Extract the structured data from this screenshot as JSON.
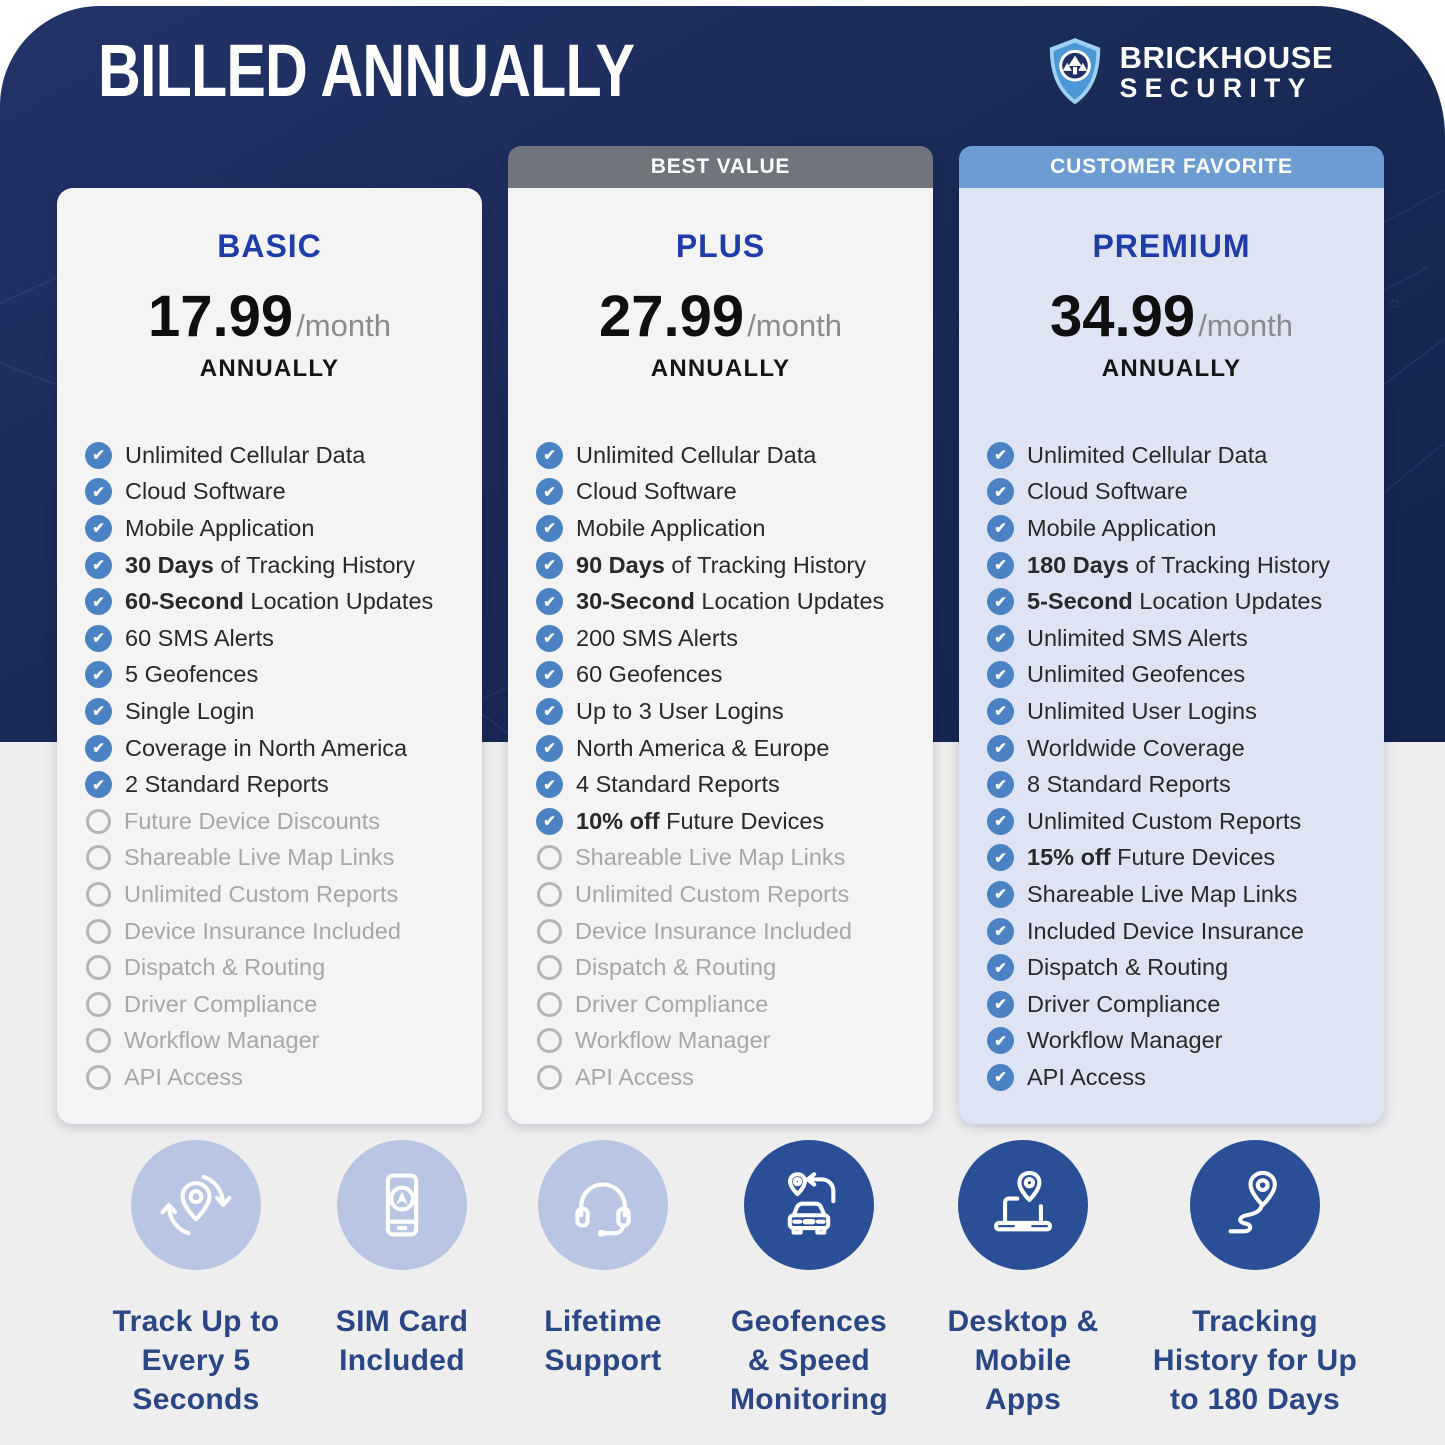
{
  "page": {
    "title": "BILLED ANNUALLY"
  },
  "logo": {
    "line1": "BRICKHOUSE",
    "line2": "SECURITY",
    "shield_icon": "shield-logo-icon"
  },
  "colors": {
    "navy_background": "#1a2b58",
    "content_background": "#eeeeef",
    "check_blue": "#4a82c3",
    "unchecked_gray": "#b4b4b6",
    "plan_title_blue": "#1e3da8",
    "month_gray": "#8b8b8d",
    "highlight_label_navy": "#2a4785",
    "highlight_circle_light": "#b9c6e3",
    "highlight_circle_dark": "#2b4f96"
  },
  "plans": [
    {
      "name": "BASIC",
      "banner": null,
      "banner_bg": null,
      "card_bg": "#f4f4f5",
      "price": "17.99",
      "price_suffix": "/month",
      "billing": "ANNUALLY",
      "features": [
        {
          "bold": "",
          "text": "Unlimited Cellular Data",
          "checked": true
        },
        {
          "bold": "",
          "text": "Cloud Software",
          "checked": true
        },
        {
          "bold": "",
          "text": "Mobile Application",
          "checked": true
        },
        {
          "bold": "30 Days",
          "text": " of Tracking History",
          "checked": true
        },
        {
          "bold": "60-Second",
          "text": " Location Updates",
          "checked": true
        },
        {
          "bold": "",
          "text": "60 SMS Alerts",
          "checked": true
        },
        {
          "bold": "",
          "text": "5 Geofences",
          "checked": true
        },
        {
          "bold": "",
          "text": "Single Login",
          "checked": true
        },
        {
          "bold": "",
          "text": "Coverage in North America",
          "checked": true
        },
        {
          "bold": "",
          "text": "2 Standard Reports",
          "checked": true
        },
        {
          "bold": "",
          "text": "Future Device Discounts",
          "checked": false
        },
        {
          "bold": "",
          "text": "Shareable Live Map Links",
          "checked": false
        },
        {
          "bold": "",
          "text": "Unlimited Custom Reports",
          "checked": false
        },
        {
          "bold": "",
          "text": "Device Insurance Included",
          "checked": false
        },
        {
          "bold": "",
          "text": "Dispatch & Routing",
          "checked": false
        },
        {
          "bold": "",
          "text": "Driver Compliance",
          "checked": false
        },
        {
          "bold": "",
          "text": "Workflow Manager",
          "checked": false
        },
        {
          "bold": "",
          "text": "API Access",
          "checked": false
        }
      ]
    },
    {
      "name": "PLUS",
      "banner": "BEST VALUE",
      "banner_bg": "#70757c",
      "card_bg": "#f4f4f5",
      "price": "27.99",
      "price_suffix": "/month",
      "billing": "ANNUALLY",
      "features": [
        {
          "bold": "",
          "text": "Unlimited Cellular Data",
          "checked": true
        },
        {
          "bold": "",
          "text": "Cloud Software",
          "checked": true
        },
        {
          "bold": "",
          "text": "Mobile Application",
          "checked": true
        },
        {
          "bold": "90 Days",
          "text": " of Tracking History",
          "checked": true
        },
        {
          "bold": "30-Second",
          "text": " Location Updates",
          "checked": true
        },
        {
          "bold": "",
          "text": "200 SMS Alerts",
          "checked": true
        },
        {
          "bold": "",
          "text": "60 Geofences",
          "checked": true
        },
        {
          "bold": "",
          "text": "Up to 3 User Logins",
          "checked": true
        },
        {
          "bold": "",
          "text": "North America & Europe",
          "checked": true
        },
        {
          "bold": "",
          "text": "4 Standard Reports",
          "checked": true
        },
        {
          "bold": "10% off",
          "text": " Future Devices",
          "checked": true
        },
        {
          "bold": "",
          "text": "Shareable Live Map Links",
          "checked": false
        },
        {
          "bold": "",
          "text": "Unlimited Custom Reports",
          "checked": false
        },
        {
          "bold": "",
          "text": "Device Insurance Included",
          "checked": false
        },
        {
          "bold": "",
          "text": "Dispatch & Routing",
          "checked": false
        },
        {
          "bold": "",
          "text": "Driver Compliance",
          "checked": false
        },
        {
          "bold": "",
          "text": "Workflow Manager",
          "checked": false
        },
        {
          "bold": "",
          "text": "API Access",
          "checked": false
        }
      ]
    },
    {
      "name": "PREMIUM",
      "banner": "CUSTOMER FAVORITE",
      "banner_bg": "#6d9cd2",
      "card_bg": "#dfe4f4",
      "price": "34.99",
      "price_suffix": "/month",
      "billing": "ANNUALLY",
      "features": [
        {
          "bold": "",
          "text": "Unlimited Cellular Data",
          "checked": true
        },
        {
          "bold": "",
          "text": "Cloud Software",
          "checked": true
        },
        {
          "bold": "",
          "text": "Mobile Application",
          "checked": true
        },
        {
          "bold": "180 Days",
          "text": " of Tracking History",
          "checked": true
        },
        {
          "bold": "5-Second",
          "text": " Location Updates",
          "checked": true
        },
        {
          "bold": "",
          "text": "Unlimited SMS Alerts",
          "checked": true
        },
        {
          "bold": "",
          "text": "Unlimited Geofences",
          "checked": true
        },
        {
          "bold": "",
          "text": "Unlimited User Logins",
          "checked": true
        },
        {
          "bold": "",
          "text": "Worldwide Coverage",
          "checked": true
        },
        {
          "bold": "",
          "text": "8 Standard Reports",
          "checked": true
        },
        {
          "bold": "",
          "text": "Unlimited Custom Reports",
          "checked": true
        },
        {
          "bold": "15% off",
          "text": " Future Devices",
          "checked": true
        },
        {
          "bold": "",
          "text": "Shareable Live Map Links",
          "checked": true
        },
        {
          "bold": "",
          "text": "Included Device Insurance",
          "checked": true
        },
        {
          "bold": "",
          "text": "Dispatch & Routing",
          "checked": true
        },
        {
          "bold": "",
          "text": "Driver Compliance",
          "checked": true
        },
        {
          "bold": "",
          "text": "Workflow Manager",
          "checked": true
        },
        {
          "bold": "",
          "text": "API Access",
          "checked": true
        }
      ]
    }
  ],
  "highlights": [
    {
      "icon": "pin-refresh-icon",
      "style": "light",
      "label_lines": [
        "Track Up to",
        "Every 5",
        "Seconds"
      ]
    },
    {
      "icon": "sim-card-phone-icon",
      "style": "light",
      "label_lines": [
        "SIM Card",
        "Included"
      ]
    },
    {
      "icon": "headset-icon",
      "style": "light",
      "label_lines": [
        "Lifetime",
        "Support"
      ]
    },
    {
      "icon": "car-geofence-icon",
      "style": "dark",
      "label_lines": [
        "Geofences",
        "& Speed",
        "Monitoring"
      ]
    },
    {
      "icon": "laptop-pin-icon",
      "style": "dark",
      "label_lines": [
        "Desktop &",
        "Mobile",
        "Apps"
      ]
    },
    {
      "icon": "pin-route-icon",
      "style": "dark",
      "label_lines": [
        "Tracking",
        "History for Up",
        "to 180 Days"
      ]
    }
  ]
}
